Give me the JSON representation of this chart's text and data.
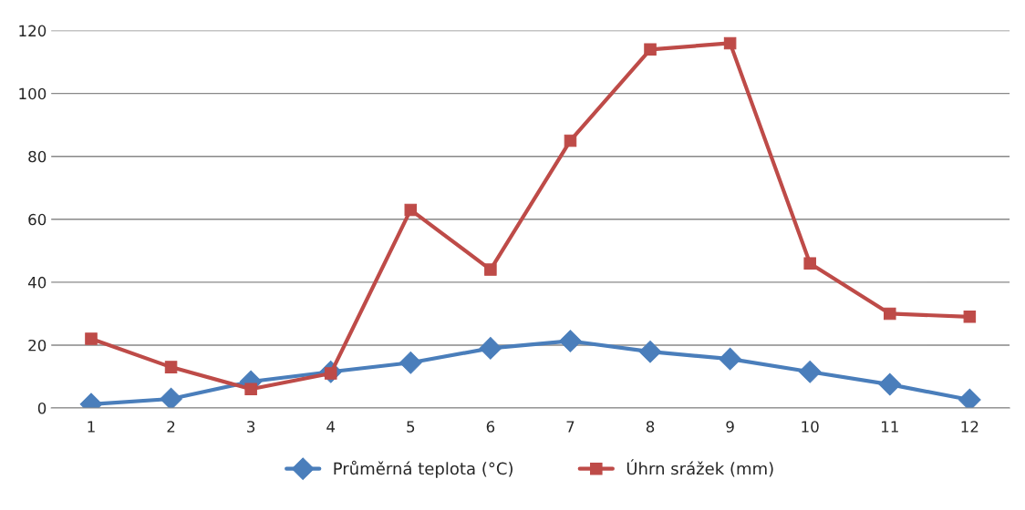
{
  "chart_data": {
    "type": "line",
    "categories": [
      "1",
      "2",
      "3",
      "4",
      "5",
      "6",
      "7",
      "8",
      "9",
      "10",
      "11",
      "12"
    ],
    "series": [
      {
        "name": "Průměrná teplota (°C)",
        "color": "#4a7ebb",
        "marker": "diamond",
        "values": [
          1.2,
          2.9,
          8.4,
          11.5,
          14.4,
          19,
          21.3,
          17.9,
          15.6,
          11.5,
          7.5,
          2.6
        ]
      },
      {
        "name": "Úhrn srážek (mm)",
        "color": "#be4b48",
        "marker": "square",
        "values": [
          22,
          13,
          6,
          11,
          63,
          44,
          85,
          114,
          116,
          46,
          30,
          29
        ]
      }
    ],
    "ylim": [
      0,
      120
    ],
    "yticks": [
      0,
      20,
      40,
      60,
      80,
      100,
      120
    ],
    "grid": "y",
    "legend": "bottom"
  }
}
